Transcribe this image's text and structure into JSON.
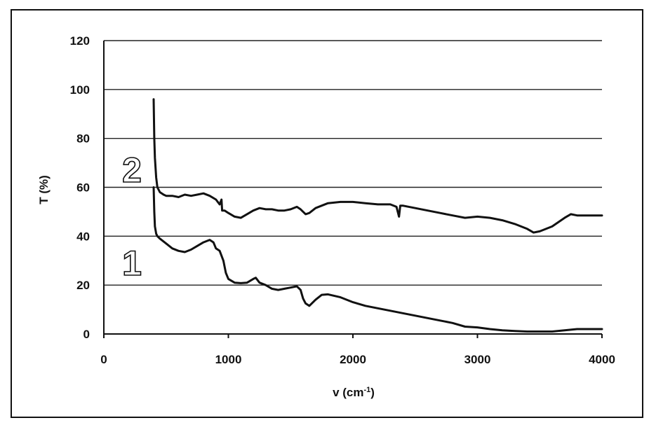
{
  "chart_data": {
    "type": "line",
    "xlabel_main": "v (cm",
    "xlabel_sup": "-1",
    "xlabel_end": ")",
    "ylabel": "T (%)",
    "xlim": [
      0,
      4000
    ],
    "ylim": [
      0,
      120
    ],
    "x_ticks": [
      0,
      1000,
      2000,
      3000,
      4000
    ],
    "y_ticks": [
      0,
      20,
      40,
      60,
      80,
      100,
      120
    ],
    "grid": "horizontal",
    "line_color": "#111111",
    "series": [
      {
        "label": "1",
        "x": [
          400,
          405,
          410,
          420,
          430,
          450,
          500,
          550,
          600,
          650,
          700,
          750,
          800,
          850,
          880,
          900,
          930,
          960,
          980,
          1000,
          1050,
          1100,
          1150,
          1200,
          1220,
          1250,
          1300,
          1350,
          1400,
          1450,
          1500,
          1550,
          1580,
          1600,
          1620,
          1650,
          1700,
          1750,
          1800,
          1900,
          2000,
          2100,
          2200,
          2300,
          2400,
          2500,
          2600,
          2700,
          2800,
          2900,
          3000,
          3100,
          3200,
          3300,
          3400,
          3500,
          3600,
          3700,
          3800,
          3900,
          4000
        ],
        "y": [
          60,
          50,
          44,
          41,
          40,
          39,
          37,
          35,
          34,
          33.5,
          34.5,
          36,
          37.5,
          38.5,
          37.5,
          35,
          34,
          30,
          25,
          22.5,
          21,
          20.8,
          21,
          22.5,
          23,
          21,
          20,
          18.5,
          18,
          18.5,
          19,
          19.5,
          18,
          14.5,
          12.5,
          11.5,
          14,
          16,
          16.2,
          15,
          13,
          11.5,
          10.5,
          9.5,
          8.5,
          7.5,
          6.5,
          5.5,
          4.5,
          3,
          2.7,
          2,
          1.5,
          1.2,
          1,
          1,
          1,
          1.5,
          2,
          2,
          2
        ]
      },
      {
        "label": "2",
        "x": [
          400,
          405,
          410,
          420,
          430,
          450,
          480,
          500,
          550,
          600,
          650,
          700,
          750,
          800,
          850,
          900,
          930,
          945,
          950,
          970,
          1000,
          1050,
          1100,
          1150,
          1200,
          1250,
          1300,
          1350,
          1400,
          1450,
          1500,
          1550,
          1580,
          1600,
          1620,
          1650,
          1700,
          1750,
          1800,
          1900,
          2000,
          2100,
          2200,
          2300,
          2350,
          2370,
          2380,
          2400,
          2500,
          2600,
          2700,
          2800,
          2900,
          3000,
          3100,
          3200,
          3300,
          3400,
          3450,
          3500,
          3600,
          3700,
          3750,
          3800,
          3900,
          4000
        ],
        "y": [
          96,
          80,
          72,
          64,
          60,
          58,
          57,
          56.5,
          56.5,
          56,
          57,
          56.5,
          57,
          57.5,
          56.5,
          55,
          53,
          55,
          50.5,
          50.5,
          49.5,
          48,
          47.5,
          49,
          50.5,
          51.5,
          51,
          51,
          50.5,
          50.5,
          51,
          52,
          51,
          50,
          49,
          49.5,
          51.5,
          52.5,
          53.5,
          54,
          54,
          53.5,
          53,
          53,
          52,
          48,
          52.5,
          52.5,
          51.5,
          50.5,
          49.5,
          48.5,
          47.5,
          48,
          47.5,
          46.5,
          45,
          43,
          41.5,
          42,
          44,
          47.5,
          49,
          48.5,
          48.5,
          48.5
        ]
      }
    ]
  }
}
